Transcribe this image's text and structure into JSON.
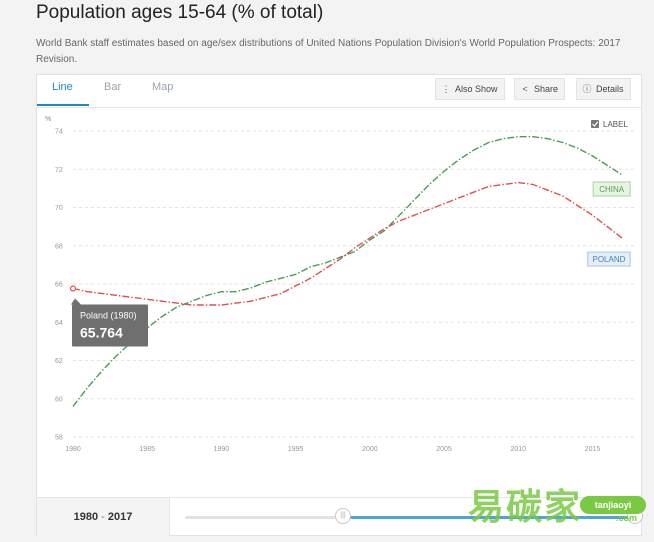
{
  "page": {
    "title": "Population ages 15-64 (% of total)",
    "subtitle": "World Bank staff estimates based on age/sex distributions of United Nations Population Division's World Population Prospects: 2017 Revision."
  },
  "tabs": [
    {
      "label": "Line",
      "active": true
    },
    {
      "label": "Bar",
      "active": false
    },
    {
      "label": "Map",
      "active": false
    }
  ],
  "toolbar": {
    "also_show": "Also Show",
    "share": "Share",
    "details": "Details",
    "also_show_icon": "more-vertical-icon",
    "share_icon": "share-icon",
    "details_icon": "info-icon"
  },
  "footer": {
    "range_start": "1980",
    "range_sep": "-",
    "range_end": "2017"
  },
  "watermark": {
    "text": "易碳家",
    "url": "tanjiaoyi",
    "suffix": ".com"
  },
  "chart_data": {
    "type": "line",
    "ylabel": "%",
    "ylim": [
      58,
      74
    ],
    "yticks": [
      58,
      60,
      62,
      64,
      66,
      68,
      70,
      72,
      74
    ],
    "xlim": [
      1980,
      2018
    ],
    "xticks": [
      1980,
      1985,
      1990,
      1995,
      2000,
      2005,
      2010,
      2015
    ],
    "grid": true,
    "label_toggle": {
      "text": "LABEL",
      "checked": true
    },
    "tooltip": {
      "title": "Poland (1980)",
      "value": "65.764"
    },
    "series": [
      {
        "name": "CHINA",
        "color": "#4b9a58",
        "label_bg": "#e6f4e2",
        "label_border": "#a8d3a0",
        "label_color": "#5a9a5a",
        "x": [
          1980,
          1981,
          1982,
          1983,
          1984,
          1985,
          1986,
          1987,
          1988,
          1989,
          1990,
          1991,
          1992,
          1993,
          1994,
          1995,
          1996,
          1997,
          1998,
          1999,
          2000,
          2001,
          2002,
          2003,
          2004,
          2005,
          2006,
          2007,
          2008,
          2009,
          2010,
          2011,
          2012,
          2013,
          2014,
          2015,
          2016,
          2017
        ],
        "values": [
          59.6,
          60.6,
          61.5,
          62.3,
          63.0,
          63.7,
          64.3,
          64.8,
          65.1,
          65.4,
          65.6,
          65.6,
          65.8,
          66.1,
          66.3,
          66.5,
          66.9,
          67.1,
          67.4,
          67.7,
          68.3,
          68.8,
          69.6,
          70.4,
          71.2,
          71.9,
          72.5,
          73.0,
          73.4,
          73.6,
          73.7,
          73.7,
          73.6,
          73.4,
          73.1,
          72.7,
          72.2,
          71.7
        ]
      },
      {
        "name": "POLAND",
        "color": "#d9534f",
        "label_bg": "#e4eef8",
        "label_border": "#a8c6e4",
        "label_color": "#4a7fb4",
        "x": [
          1980,
          1981,
          1982,
          1983,
          1984,
          1985,
          1986,
          1987,
          1988,
          1989,
          1990,
          1991,
          1992,
          1993,
          1994,
          1995,
          1996,
          1997,
          1998,
          1999,
          2000,
          2001,
          2002,
          2003,
          2004,
          2005,
          2006,
          2007,
          2008,
          2009,
          2010,
          2011,
          2012,
          2013,
          2014,
          2015,
          2016,
          2017
        ],
        "values": [
          65.764,
          65.6,
          65.5,
          65.4,
          65.3,
          65.2,
          65.1,
          65.0,
          64.9,
          64.9,
          64.9,
          65.0,
          65.1,
          65.3,
          65.5,
          65.9,
          66.3,
          66.8,
          67.3,
          67.9,
          68.4,
          68.9,
          69.3,
          69.6,
          69.9,
          70.2,
          70.5,
          70.8,
          71.1,
          71.2,
          71.3,
          71.2,
          70.9,
          70.6,
          70.1,
          69.6,
          69.0,
          68.4
        ]
      }
    ]
  }
}
